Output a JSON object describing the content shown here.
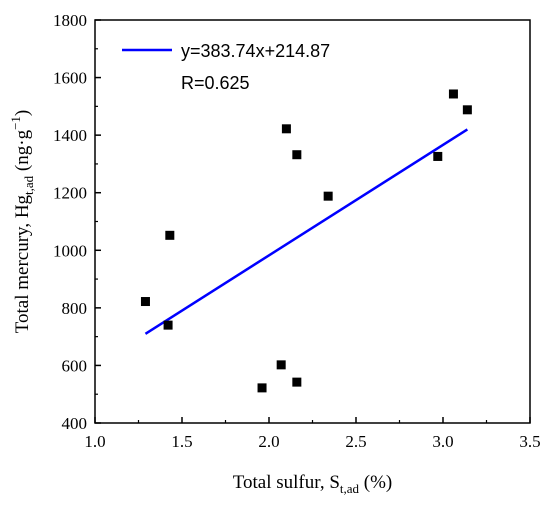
{
  "chart_data": {
    "type": "scatter",
    "xlabel": {
      "main": "Total sulfur, S",
      "sub": "t,ad",
      "tail": " (%)"
    },
    "ylabel": {
      "main": "Total mercury, Hg",
      "sub": "t,ad",
      "tail": " (ng·g",
      "sup": "−1",
      "close": ")"
    },
    "xlim": [
      1.0,
      3.5
    ],
    "ylim": [
      400,
      1800
    ],
    "xticks": [
      1.0,
      1.5,
      2.0,
      2.5,
      3.0,
      3.5
    ],
    "yticks": [
      400,
      600,
      800,
      1000,
      1200,
      1400,
      1600,
      1800
    ],
    "x_tick_labels": [
      "1.0",
      "1.5",
      "2.0",
      "2.5",
      "3.0",
      "3.5"
    ],
    "y_tick_labels": [
      "400",
      "600",
      "800",
      "1000",
      "1200",
      "1400",
      "1600",
      "1800"
    ],
    "grid": false,
    "legend_position": "top-left",
    "series": [
      {
        "marker": "square",
        "color": "#000000",
        "points": [
          {
            "x": 1.29,
            "y": 822
          },
          {
            "x": 1.42,
            "y": 740
          },
          {
            "x": 1.43,
            "y": 1052
          },
          {
            "x": 1.96,
            "y": 522
          },
          {
            "x": 2.07,
            "y": 602
          },
          {
            "x": 2.1,
            "y": 1422
          },
          {
            "x": 2.16,
            "y": 1332
          },
          {
            "x": 2.16,
            "y": 542
          },
          {
            "x": 2.34,
            "y": 1188
          },
          {
            "x": 2.97,
            "y": 1326
          },
          {
            "x": 3.06,
            "y": 1543
          },
          {
            "x": 3.14,
            "y": 1488
          }
        ]
      }
    ],
    "fit_line": {
      "color": "#0000ff",
      "slope": 383.74,
      "intercept": 214.87,
      "x_range": [
        1.29,
        3.14
      ],
      "equation_label": "y=383.74x+214.87",
      "r_label": "R=0.625"
    }
  }
}
